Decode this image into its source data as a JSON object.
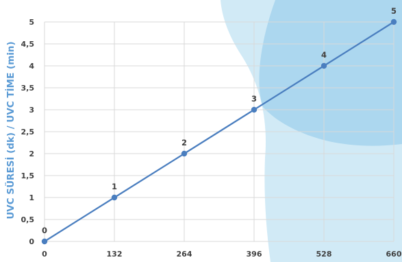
{
  "chart_data": {
    "type": "line",
    "title": "",
    "xlabel": "",
    "ylabel": "UVC SÜRESİ (dk) / UVC TİME (min)",
    "x_ticks": [
      "0",
      "132",
      "264",
      "396",
      "528",
      "660"
    ],
    "y_ticks": [
      "0",
      "0,5",
      "1",
      "1,5",
      "2",
      "2,5",
      "3",
      "3,5",
      "4",
      "4,5",
      "5"
    ],
    "xlim": [
      0,
      660
    ],
    "ylim": [
      0,
      5
    ],
    "grid": true,
    "series": [
      {
        "x": [
          0,
          132,
          264,
          396,
          528,
          660
        ],
        "values": [
          0,
          1,
          2,
          3,
          4,
          5
        ],
        "data_labels": [
          "0",
          "1",
          "2",
          "3",
          "4",
          "5"
        ]
      }
    ]
  },
  "colors": {
    "series": "#4a7ebf",
    "ylabel": "#5b9bd5",
    "grid": "#d9d9d9",
    "background_blob": "#c9e6f5",
    "background_blob_dark": "#9fd0ec"
  }
}
